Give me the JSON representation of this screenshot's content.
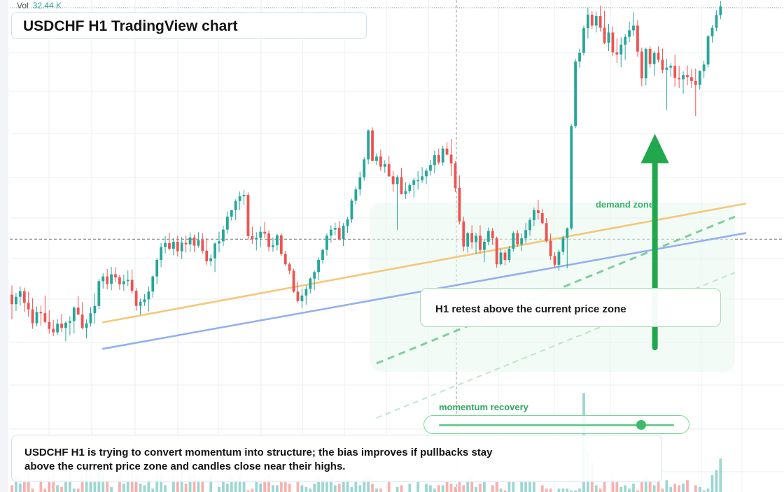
{
  "volume": {
    "label": "Vol",
    "value": "32.44 K"
  },
  "title": "USDCHF H1 TradingView chart",
  "annotations": {
    "demand_zone_label": "demand zone",
    "retest_callout": "H1 retest above the current price zone",
    "momentum_label": "momentum recovery",
    "momentum_level": 0.86,
    "note": "USDCHF H1 is trying to convert momentum into structure; the bias improves if pullbacks stay above the current price zone and candles close near their highs."
  },
  "colors": {
    "bull": "#26a69a",
    "bear": "#ef5350",
    "trend_upper": "#f5c26b",
    "trend_lower": "#8aa8ee",
    "demand_green": "#22a84c",
    "grid": "#e8edf3"
  },
  "chart_data": {
    "type": "candlestick",
    "symbol": "USDCHF",
    "timeframe": "H1",
    "price_range": [
      0,
      100
    ],
    "candles": [
      [
        34.1,
        36.2,
        28.4,
        31.9
      ],
      [
        31.9,
        34.5,
        30.3,
        33.6
      ],
      [
        33.6,
        36.0,
        31.5,
        34.9
      ],
      [
        34.9,
        35.7,
        30.1,
        32.2
      ],
      [
        32.2,
        34.8,
        29.0,
        30.7
      ],
      [
        30.7,
        33.3,
        26.2,
        27.5
      ],
      [
        27.5,
        31.4,
        26.8,
        30.1
      ],
      [
        30.1,
        31.6,
        26.9,
        29.8
      ],
      [
        29.8,
        33.9,
        27.5,
        27.8
      ],
      [
        27.8,
        30.5,
        25.1,
        26.2
      ],
      [
        26.2,
        28.3,
        24.5,
        25.4
      ],
      [
        25.4,
        28.4,
        24.8,
        27.4
      ],
      [
        27.4,
        29.6,
        25.5,
        26.4
      ],
      [
        26.4,
        28.0,
        23.3,
        27.6
      ],
      [
        27.6,
        29.1,
        24.7,
        28.0
      ],
      [
        28.0,
        31.4,
        25.1,
        31.1
      ],
      [
        31.1,
        33.8,
        29.4,
        29.5
      ],
      [
        29.5,
        32.4,
        26.1,
        26.4
      ],
      [
        26.4,
        28.4,
        24.0,
        27.5
      ],
      [
        27.5,
        31.2,
        26.7,
        29.8
      ],
      [
        29.8,
        34.4,
        27.3,
        31.5
      ],
      [
        31.5,
        37.7,
        30.8,
        37.2
      ],
      [
        37.2,
        39.0,
        35.5,
        38.3
      ],
      [
        38.3,
        40.0,
        35.3,
        36.6
      ],
      [
        36.6,
        40.5,
        35.1,
        38.8
      ],
      [
        38.8,
        40.4,
        37.0,
        38.1
      ],
      [
        38.1,
        38.7,
        35.2,
        36.5
      ],
      [
        36.5,
        38.7,
        35.0,
        37.2
      ],
      [
        37.2,
        39.7,
        36.1,
        37.5
      ],
      [
        37.5,
        39.9,
        34.3,
        35.0
      ],
      [
        35.0,
        35.6,
        30.4,
        31.5
      ],
      [
        31.5,
        33.2,
        29.5,
        32.4
      ],
      [
        32.4,
        34.2,
        31.5,
        33.0
      ],
      [
        33.0,
        36.0,
        30.2,
        34.8
      ],
      [
        34.8,
        38.5,
        33.4,
        38.3
      ],
      [
        38.3,
        42.5,
        36.5,
        42.1
      ],
      [
        42.1,
        46.0,
        40.5,
        45.1
      ],
      [
        45.1,
        47.6,
        43.6,
        46.0
      ],
      [
        46.0,
        48.4,
        44.3,
        44.7
      ],
      [
        44.7,
        47.1,
        43.2,
        46.3
      ],
      [
        46.3,
        47.7,
        42.9,
        44.1
      ],
      [
        44.1,
        47.4,
        42.3,
        46.1
      ],
      [
        46.1,
        47.8,
        43.8,
        45.7
      ],
      [
        45.7,
        48.5,
        43.9,
        47.3
      ],
      [
        47.3,
        48.0,
        43.9,
        45.4
      ],
      [
        45.4,
        48.5,
        44.9,
        46.7
      ],
      [
        46.7,
        48.3,
        43.6,
        44.2
      ],
      [
        44.2,
        47.1,
        41.0,
        41.8
      ],
      [
        41.8,
        43.4,
        40.7,
        42.5
      ],
      [
        42.5,
        46.2,
        39.3,
        45.9
      ],
      [
        45.9,
        48.6,
        43.9,
        46.4
      ],
      [
        46.4,
        50.0,
        45.3,
        49.1
      ],
      [
        49.1,
        53.3,
        48.2,
        52.1
      ],
      [
        52.1,
        53.7,
        51.2,
        53.6
      ],
      [
        53.6,
        56.1,
        51.3,
        55.7
      ],
      [
        55.7,
        57.9,
        53.6,
        56.8
      ],
      [
        56.8,
        58.3,
        54.8,
        57.1
      ],
      [
        57.1,
        57.7,
        46.8,
        47.6
      ],
      [
        47.6,
        49.8,
        45.8,
        46.9
      ],
      [
        46.9,
        48.5,
        44.3,
        47.2
      ],
      [
        47.2,
        49.8,
        45.0,
        48.6
      ],
      [
        48.6,
        50.9,
        47.2,
        48.2
      ],
      [
        48.2,
        48.9,
        44.1,
        45.1
      ],
      [
        45.1,
        47.3,
        44.0,
        45.5
      ],
      [
        45.5,
        48.2,
        44.3,
        47.8
      ],
      [
        47.8,
        48.3,
        43.0,
        43.5
      ],
      [
        43.5,
        44.2,
        40.7,
        41.1
      ],
      [
        41.1,
        41.5,
        38.8,
        39.6
      ],
      [
        39.6,
        40.1,
        34.5,
        34.8
      ],
      [
        34.8,
        37.1,
        32.1,
        32.6
      ],
      [
        32.6,
        35.5,
        31.0,
        33.9
      ],
      [
        33.9,
        36.2,
        31.8,
        35.4
      ],
      [
        35.4,
        38.2,
        34.4,
        37.8
      ],
      [
        37.8,
        39.7,
        35.1,
        39.3
      ],
      [
        39.3,
        42.7,
        37.4,
        42.1
      ],
      [
        42.1,
        44.7,
        41.3,
        44.4
      ],
      [
        44.4,
        48.2,
        43.1,
        47.7
      ],
      [
        47.7,
        50.1,
        46.1,
        49.1
      ],
      [
        49.1,
        50.7,
        47.8,
        49.5
      ],
      [
        49.5,
        51.1,
        46.6,
        46.9
      ],
      [
        46.9,
        50.6,
        45.3,
        50.0
      ],
      [
        50.0,
        52.0,
        48.4,
        51.5
      ],
      [
        51.5,
        56.2,
        50.7,
        55.8
      ],
      [
        55.8,
        59.1,
        54.9,
        58.4
      ],
      [
        58.4,
        62.5,
        57.0,
        61.2
      ],
      [
        61.2,
        65.8,
        60.4,
        65.3
      ],
      [
        65.3,
        72.2,
        64.2,
        72.0
      ],
      [
        72.0,
        72.7,
        64.9,
        65.0
      ],
      [
        65.0,
        66.7,
        64.0,
        66.0
      ],
      [
        66.0,
        67.6,
        62.7,
        63.6
      ],
      [
        63.6,
        65.1,
        62.2,
        64.2
      ],
      [
        64.2,
        66.1,
        61.3,
        61.4
      ],
      [
        61.4,
        62.6,
        57.9,
        59.6
      ],
      [
        59.6,
        61.7,
        49.0,
        61.2
      ],
      [
        61.2,
        63.3,
        57.2,
        57.3
      ],
      [
        57.3,
        60.0,
        56.2,
        58.0
      ],
      [
        58.0,
        59.9,
        57.5,
        59.4
      ],
      [
        59.4,
        61.0,
        56.5,
        60.5
      ],
      [
        60.5,
        62.6,
        58.3,
        60.5
      ],
      [
        60.5,
        63.5,
        59.9,
        61.4
      ],
      [
        61.4,
        63.2,
        59.6,
        62.7
      ],
      [
        62.7,
        65.2,
        61.6,
        64.0
      ],
      [
        64.0,
        67.3,
        62.1,
        66.3
      ],
      [
        66.3,
        67.8,
        64.1,
        64.6
      ],
      [
        64.6,
        68.4,
        63.9,
        67.8
      ],
      [
        67.8,
        69.3,
        66.3,
        66.4
      ],
      [
        66.4,
        70.0,
        61.5,
        64.4
      ],
      [
        64.4,
        64.9,
        57.8,
        58.7
      ],
      [
        58.7,
        61.6,
        50.3,
        51.0
      ],
      [
        51.0,
        52.1,
        44.1,
        45.2
      ],
      [
        45.2,
        48.6,
        43.8,
        48.3
      ],
      [
        48.3,
        50.1,
        44.7,
        46.2
      ],
      [
        46.2,
        48.4,
        43.5,
        47.7
      ],
      [
        47.7,
        50.1,
        43.6,
        44.4
      ],
      [
        44.4,
        47.0,
        41.6,
        46.3
      ],
      [
        46.3,
        49.6,
        45.5,
        48.8
      ],
      [
        48.8,
        49.5,
        45.6,
        47.1
      ],
      [
        47.1,
        47.5,
        40.3,
        41.1
      ],
      [
        41.1,
        44.7,
        40.8,
        43.8
      ],
      [
        43.8,
        44.4,
        40.9,
        42.1
      ],
      [
        42.1,
        45.3,
        41.5,
        44.7
      ],
      [
        44.7,
        48.7,
        44.0,
        48.3
      ],
      [
        48.3,
        49.0,
        45.1,
        45.7
      ],
      [
        45.7,
        48.3,
        44.2,
        47.1
      ],
      [
        47.1,
        50.6,
        46.0,
        49.0
      ],
      [
        49.0,
        51.9,
        47.7,
        51.3
      ],
      [
        51.3,
        54.2,
        49.9,
        53.6
      ],
      [
        53.6,
        56.0,
        51.4,
        52.9
      ],
      [
        52.9,
        53.9,
        50.3,
        50.6
      ],
      [
        50.6,
        51.8,
        46.1,
        46.5
      ],
      [
        46.5,
        48.2,
        42.1,
        43.0
      ],
      [
        43.0,
        43.9,
        40.4,
        41.0
      ],
      [
        41.0,
        44.5,
        39.6,
        44.0
      ],
      [
        44.0,
        47.6,
        43.3,
        47.2
      ],
      [
        47.2,
        49.6,
        40.2,
        49.4
      ],
      [
        49.4,
        73.5,
        49.0,
        73.0
      ],
      [
        73.0,
        88.5,
        72.5,
        87.9
      ],
      [
        87.9,
        90.9,
        86.5,
        89.9
      ],
      [
        89.9,
        96.2,
        89.3,
        95.6
      ],
      [
        95.6,
        100.4,
        93.2,
        98.7
      ],
      [
        98.7,
        99.5,
        95.4,
        96.2
      ],
      [
        96.2,
        99.4,
        94.6,
        98.4
      ],
      [
        98.4,
        100.8,
        94.8,
        95.7
      ],
      [
        95.7,
        99.6,
        91.9,
        92.2
      ],
      [
        92.2,
        96.6,
        90.3,
        94.6
      ],
      [
        94.6,
        96.0,
        89.1,
        90.0
      ],
      [
        90.0,
        93.2,
        87.6,
        89.5
      ],
      [
        89.5,
        93.5,
        86.6,
        91.8
      ],
      [
        91.8,
        94.2,
        88.3,
        93.6
      ],
      [
        93.6,
        97.1,
        92.4,
        95.1
      ],
      [
        95.1,
        99.3,
        93.8,
        96.2
      ],
      [
        96.2,
        97.4,
        89.0,
        90.2
      ],
      [
        90.2,
        91.1,
        82.2,
        84.0
      ],
      [
        84.0,
        91.1,
        82.4,
        90.8
      ],
      [
        90.8,
        91.4,
        86.5,
        87.3
      ],
      [
        87.3,
        90.3,
        84.6,
        89.9
      ],
      [
        89.9,
        91.4,
        87.7,
        88.3
      ],
      [
        88.3,
        90.9,
        85.2,
        86.0
      ],
      [
        86.0,
        88.5,
        76.7,
        86.5
      ],
      [
        86.5,
        87.5,
        84.4,
        86.9
      ],
      [
        86.9,
        89.5,
        82.1,
        84.1
      ],
      [
        84.1,
        86.9,
        81.8,
        83.8
      ],
      [
        83.8,
        85.6,
        80.5,
        84.8
      ],
      [
        84.8,
        87.0,
        82.4,
        84.3
      ],
      [
        84.3,
        86.2,
        81.8,
        83.4
      ],
      [
        83.4,
        86.3,
        75.3,
        82.5
      ],
      [
        82.5,
        85.9,
        81.4,
        85.7
      ],
      [
        85.7,
        88.1,
        84.1,
        87.2
      ],
      [
        87.2,
        94.0,
        86.5,
        93.7
      ],
      [
        93.7,
        96.3,
        92.3,
        95.7
      ],
      [
        95.7,
        99.7,
        94.9,
        98.6
      ],
      [
        98.6,
        101.9,
        97.7,
        100.6
      ]
    ],
    "volume": [
      0.04,
      0.1,
      0.05,
      0.07,
      0.12,
      0.02,
      0.0,
      0.08,
      0.02,
      0.09,
      0.11,
      0.04,
      0.03,
      0.07,
      0.14,
      0.02,
      0.02,
      0.09,
      0.13,
      0.11,
      0.07,
      0.14,
      0.11,
      0.07,
      0.03,
      0.0,
      0.1,
      0.05,
      0.06,
      0.13,
      0.09,
      0.05,
      0.04,
      0.08,
      0.02,
      0.11,
      0.1,
      0.04,
      0.0,
      0.11,
      0.08,
      0.12,
      0.05,
      0.11,
      0.1,
      0.08,
      0.06,
      0.0,
      0.09,
      0.0,
      0.03,
      0.07,
      0.05,
      0.1,
      0.06,
      0.11,
      0.06,
      0.01,
      0.02,
      0.07,
      0.05,
      0.08,
      0.1,
      0.04,
      0.04,
      0.06,
      0.07,
      0.05,
      0.0,
      0.06,
      0.04,
      0.03,
      0.02,
      0.05,
      0.09,
      0.08,
      0.06,
      0.09,
      0.04,
      0.05,
      0.08,
      0.07,
      0.03,
      0.08,
      0.04,
      0.09,
      0.1,
      0.05,
      0.02,
      0.02,
      0.0,
      0.08,
      0.0,
      0.03,
      0.04,
      0.0,
      0.05,
      0.0,
      0.06,
      0.0,
      0.05,
      0.04,
      0.02,
      0.04,
      0.04,
      0.07,
      0.05,
      0.03,
      0.08,
      0.04,
      0.08,
      0.09,
      0.03,
      0.05,
      0.07,
      0.0,
      0.04,
      0.06,
      0.02,
      0.01,
      0.06,
      0.07,
      0.0,
      0.07,
      0.06,
      0.07,
      0.06,
      0.0,
      0.04,
      0.02,
      0.02,
      0.0,
      0.02,
      0.02,
      0.02,
      0.01,
      0.01,
      0.02,
      0.59,
      0.24,
      0.18,
      0.04,
      0.02,
      0.06,
      0.0,
      0.08,
      0.07,
      0.03,
      0.04,
      0.02,
      0.05,
      0.01,
      0.07,
      0.1,
      0.06,
      0.04,
      0.06,
      0.02,
      0.07,
      0.03,
      0.05,
      0.04,
      0.05,
      0.07,
      0.0,
      0.04,
      0.03,
      0.01,
      0.02,
      0.1,
      0.13,
      0.2,
      0.0
    ],
    "trendlines": [
      {
        "role": "upper",
        "from": [
          22,
          27.7
        ],
        "to": [
          177,
          55.1
        ]
      },
      {
        "role": "lower",
        "from": [
          22,
          21.6
        ],
        "to": [
          177,
          48.3
        ]
      }
    ],
    "demand_projection": {
      "from_index": 155,
      "from_price": 21.9,
      "to_price": 61.2
    },
    "horizontal_levels": [
      46.9
    ]
  }
}
